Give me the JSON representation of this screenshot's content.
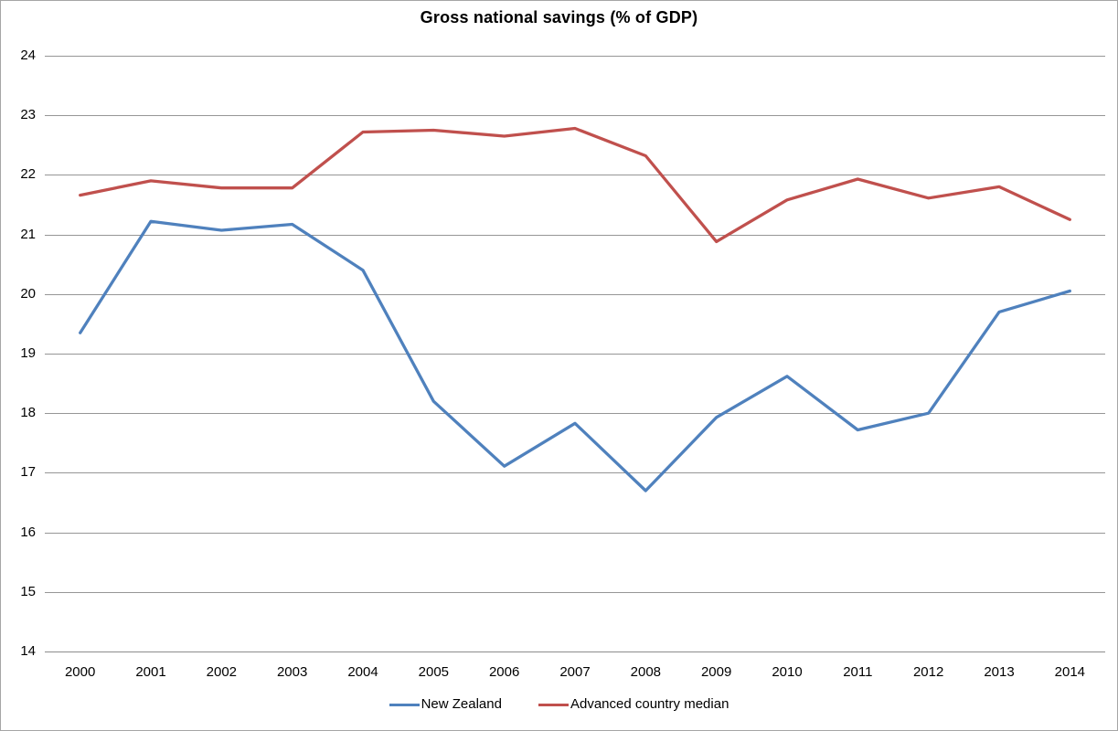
{
  "title": "Gross national savings (% of GDP)",
  "chart_data": {
    "type": "line",
    "title": "Gross national savings (% of GDP)",
    "categories": [
      "2000",
      "2001",
      "2002",
      "2003",
      "2004",
      "2005",
      "2006",
      "2007",
      "2008",
      "2009",
      "2010",
      "2011",
      "2012",
      "2013",
      "2014"
    ],
    "series": [
      {
        "name": "New Zealand",
        "color": "#4F81BD",
        "values": [
          19.35,
          21.22,
          21.07,
          21.17,
          20.4,
          18.2,
          17.11,
          17.83,
          16.7,
          17.93,
          18.62,
          17.72,
          18.0,
          19.7,
          20.05
        ]
      },
      {
        "name": "Advanced country median",
        "color": "#C0504D",
        "values": [
          21.66,
          21.9,
          21.78,
          21.78,
          22.72,
          22.75,
          22.65,
          22.78,
          22.32,
          20.88,
          21.58,
          21.93,
          21.61,
          21.8,
          21.25
        ]
      }
    ],
    "xlabel": "",
    "ylabel": "",
    "ylim": [
      14,
      24
    ],
    "ytick_step": 1,
    "grid": true,
    "gridline_color": "#969696",
    "axis_line_color": "#8c8c8c",
    "legend_position": "bottom"
  }
}
